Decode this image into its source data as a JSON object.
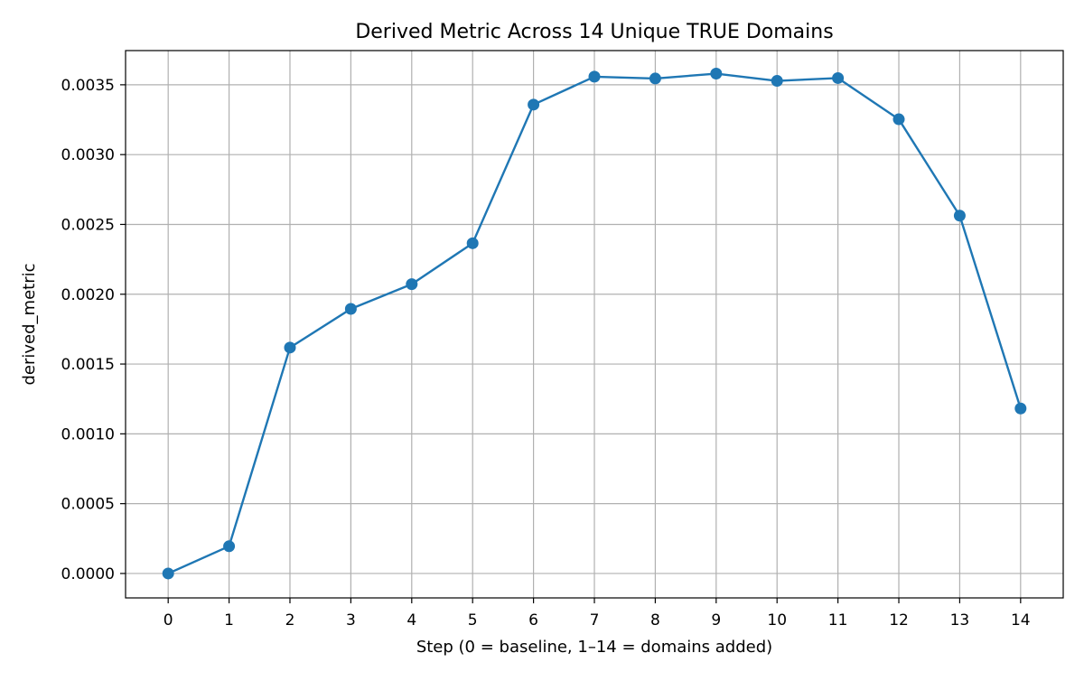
{
  "chart_data": {
    "type": "line",
    "title": "Derived Metric Across 14 Unique TRUE Domains",
    "xlabel": "Step (0 = baseline, 1–14 = domains added)",
    "ylabel": "derived_metric",
    "x": [
      0,
      1,
      2,
      3,
      4,
      5,
      6,
      7,
      8,
      9,
      10,
      11,
      12,
      13,
      14
    ],
    "series": [
      {
        "values": [
          0.0,
          0.000195,
          0.001618,
          0.001895,
          0.002072,
          0.002365,
          0.003358,
          0.003558,
          0.003545,
          0.00358,
          0.003528,
          0.003548,
          0.003253,
          0.002563,
          0.001182
        ],
        "color": "#1f77b4",
        "marker": "circle"
      }
    ],
    "xlim": [
      -0.7,
      14.7
    ],
    "ylim": [
      -0.000175,
      0.003745
    ],
    "x_ticks": [
      0,
      1,
      2,
      3,
      4,
      5,
      6,
      7,
      8,
      9,
      10,
      11,
      12,
      13,
      14
    ],
    "x_tick_labels": [
      "0",
      "1",
      "2",
      "3",
      "4",
      "5",
      "6",
      "7",
      "8",
      "9",
      "10",
      "11",
      "12",
      "13",
      "14"
    ],
    "y_ticks": [
      0.0,
      0.0005,
      0.001,
      0.0015,
      0.002,
      0.0025,
      0.003,
      0.0035
    ],
    "y_tick_labels": [
      "0.0000",
      "0.0005",
      "0.0010",
      "0.0015",
      "0.0020",
      "0.0025",
      "0.0030",
      "0.0035"
    ],
    "grid": true,
    "grid_color": "#b0b0b0"
  }
}
